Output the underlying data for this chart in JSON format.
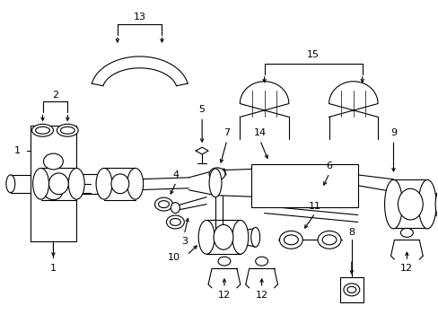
{
  "background": "#ffffff",
  "figure_size": [
    4.89,
    3.6
  ],
  "dpi": 100,
  "line_color": "#000000",
  "font_size": 8
}
